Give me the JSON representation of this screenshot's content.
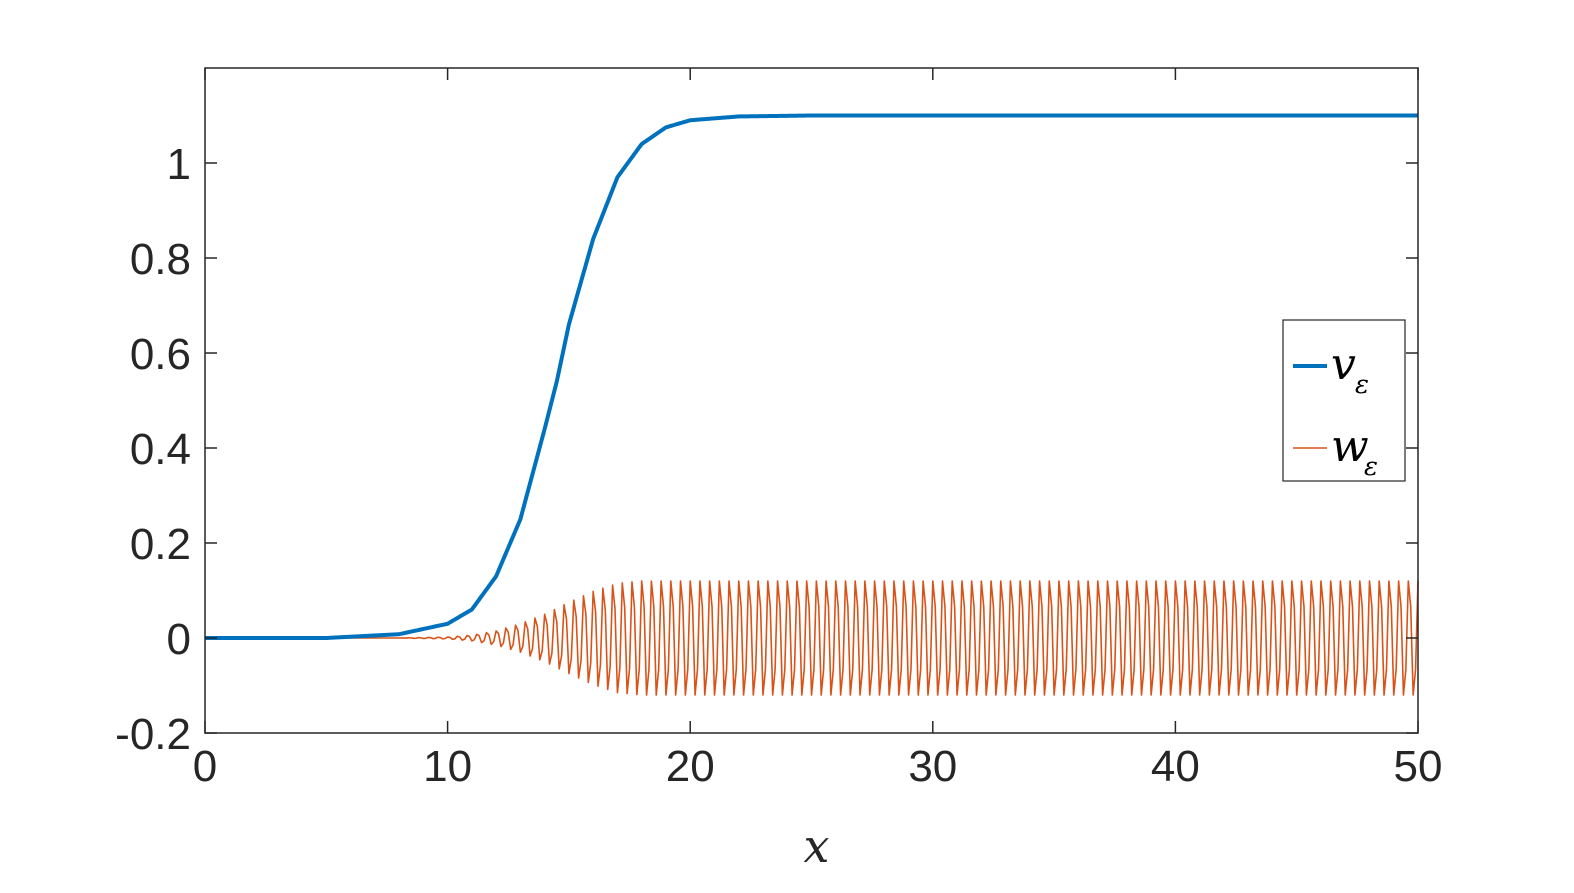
{
  "chart_data": {
    "type": "line",
    "title": "",
    "xlabel": "x",
    "ylabel": "",
    "xlim": [
      0,
      50
    ],
    "ylim": [
      -0.2,
      1.2
    ],
    "xticks": [
      "0",
      "10",
      "20",
      "30",
      "40",
      "50"
    ],
    "yticks": [
      "-0.2",
      "0",
      "0.2",
      "0.4",
      "0.6",
      "0.8",
      "1"
    ],
    "grid": false,
    "legend_position": "right",
    "series": [
      {
        "name": "v",
        "subscript": "ε",
        "color": "#0072BD",
        "style": "thick",
        "description_values": {
          "x": [
            0,
            5,
            8,
            10,
            11,
            12,
            13,
            14,
            14.5,
            15,
            16,
            17,
            18,
            19,
            20,
            22,
            25,
            50
          ],
          "y": [
            0,
            0,
            0.008,
            0.03,
            0.06,
            0.13,
            0.25,
            0.44,
            0.54,
            0.66,
            0.84,
            0.97,
            1.04,
            1.075,
            1.09,
            1.098,
            1.1,
            1.1
          ]
        }
      },
      {
        "name": "w",
        "subscript": "ε",
        "color": "#D95319",
        "style": "thin-oscillating",
        "envelope": {
          "x": [
            0,
            8,
            10,
            11,
            12,
            13,
            14,
            15,
            16,
            17,
            18,
            50
          ],
          "upper": [
            0,
            0,
            0.002,
            0.006,
            0.015,
            0.03,
            0.05,
            0.075,
            0.098,
            0.115,
            0.12,
            0.12
          ],
          "lower": [
            0,
            0,
            -0.002,
            -0.006,
            -0.015,
            -0.03,
            -0.05,
            -0.075,
            -0.098,
            -0.115,
            -0.12,
            -0.12
          ]
        },
        "inner_band": [
          -0.07,
          0.07
        ],
        "period": 0.4
      }
    ]
  }
}
